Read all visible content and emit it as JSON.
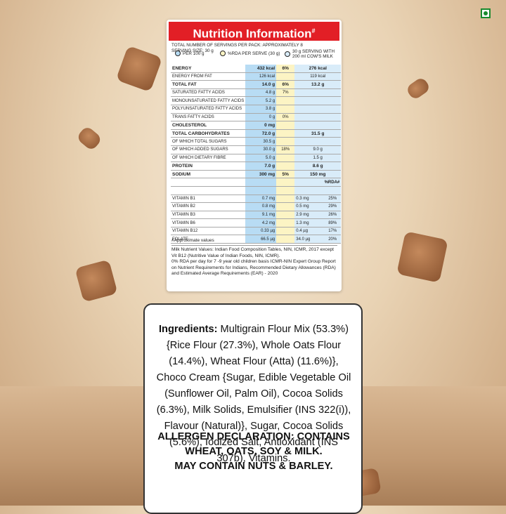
{
  "header": {
    "title": "Nutrition Information",
    "title_mark": "#"
  },
  "serving_info": [
    "TOTAL NUMBER OF SERVINGS PER PACK: APPROXIMATELY 8",
    "SERVING SIZE: 30 g"
  ],
  "legend": [
    "PER 100 g",
    "%RDA PER SERVE (30 g)",
    "30 g SERVING WITH 200 ml COW'S MILK"
  ],
  "table": {
    "rows": [
      [
        "ENERGY",
        "432 kcal",
        "6%",
        "276 kcal"
      ],
      [
        "ENERGY FROM FAT",
        "126 kcal",
        null,
        "119 kcal"
      ],
      [
        "TOTAL FAT",
        "14.0 g",
        "6%",
        "13.2 g"
      ],
      [
        "SATURATED FATTY ACIDS",
        "4.8 g",
        "7%",
        null
      ],
      [
        "MONOUNSATURATED FATTY ACIDS",
        "5.2 g",
        null,
        null
      ],
      [
        "POLYUNSATURATED FATTY ACIDS",
        "3.8 g",
        null,
        null
      ],
      [
        "TRANS FATTY ACIDS",
        "0 g",
        "0%",
        null
      ],
      [
        "CHOLESTEROL",
        "0 mg",
        null,
        null
      ],
      [
        "TOTAL CARBOHYDRATES",
        "72.0 g",
        null,
        "31.5 g"
      ],
      [
        "OF WHICH TOTAL SUGARS",
        "30.5 g",
        null,
        null
      ],
      [
        "OF WHICH ADDED SUGARS",
        "30.0 g",
        "18%",
        "9.0 g"
      ],
      [
        "OF WHICH DIETARY FIBRE",
        "5.0 g",
        null,
        "1.5 g"
      ],
      [
        "PROTEIN",
        "7.0 g",
        null,
        "8.6 g"
      ],
      [
        "SODIUM",
        "300 mg",
        "5%",
        "150 mg"
      ]
    ],
    "vitamin_header": "%RDA#",
    "vitamin_rows": [
      [
        "VITAMIN B1",
        "0.7 mg",
        "0.3 mg",
        "25%"
      ],
      [
        "VITAMIN B2",
        "0.8 mg",
        "0.5 mg",
        "29%"
      ],
      [
        "VITAMIN B3",
        "9.1 mg",
        "2.9 mg",
        "26%"
      ],
      [
        "VITAMIN B6",
        "4.2 mg",
        "1.3 mg",
        "89%"
      ],
      [
        "VITAMIN B12",
        "0.33 µg",
        "0.4 µg",
        "17%"
      ],
      [
        "FOLATE",
        "66.5 µg",
        "34.0 µg",
        "20%"
      ]
    ]
  },
  "footnote": "#Approximate values",
  "notes": [
    "Milk Nutrient Values: Indian Food Composition Tables, NIN, ICMR, 2017 except Vit B12 (Nutritive Value of Indian Foods, NIN, ICMR).",
    "0% RDA per day for 7 -9 year old children basis ICMR-NIN Expert Group Report on Nutrient Requirements for Indians, Recommended Dietary Allowances (RDA) and Estimated Average Requirements (EAR) - 2020"
  ],
  "ingredients": {
    "label": "Ingredients:",
    "text": "Multigrain Flour Mix (53.3%) {Rice Flour (27.3%), Whole Oats Flour (14.4%), Wheat Flour (Atta) (11.6%)}, Choco Cream {Sugar, Edible Vegetable Oil (Sunflower Oil, Palm Oil), Cocoa Solids (6.3%), Milk Solids, Emulsifier (INS 322(i)), Flavour (Natural)}, Sugar, Cocoa Solids (5.6%), Iodized Salt, Antioxidant (INS 307b), Vitamins."
  },
  "allergen": [
    "ALLERGEN DECLARATION: CONTAINS",
    "WHEAT, OATS, SOY & MILK.",
    "MAY CONTAIN NUTS & BARLEY."
  ]
}
